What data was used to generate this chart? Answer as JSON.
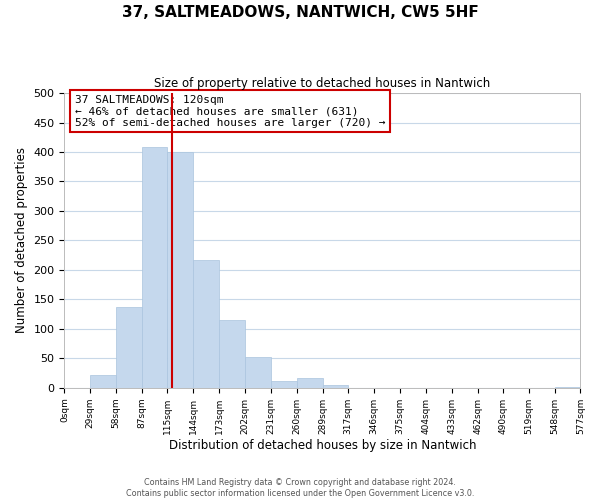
{
  "title": "37, SALTMEADOWS, NANTWICH, CW5 5HF",
  "subtitle": "Size of property relative to detached houses in Nantwich",
  "xlabel": "Distribution of detached houses by size in Nantwich",
  "ylabel": "Number of detached properties",
  "bar_edges": [
    0,
    29,
    58,
    87,
    115,
    144,
    173,
    202,
    231,
    260,
    289,
    317,
    346,
    375,
    404,
    433,
    462,
    490,
    519,
    548,
    577
  ],
  "bar_heights": [
    0,
    22,
    137,
    408,
    400,
    216,
    115,
    52,
    12,
    16,
    5,
    0,
    0,
    0,
    0,
    0,
    0,
    0,
    0,
    2
  ],
  "bar_color": "#c5d8ed",
  "bar_edgecolor": "#aac4de",
  "marker_line_x": 120,
  "marker_line_color": "#cc0000",
  "annotation_line1": "37 SALTMEADOWS: 120sqm",
  "annotation_line2": "← 46% of detached houses are smaller (631)",
  "annotation_line3": "52% of semi-detached houses are larger (720) →",
  "annotation_box_edgecolor": "#cc0000",
  "xlim": [
    0,
    577
  ],
  "ylim": [
    0,
    500
  ],
  "yticks": [
    0,
    50,
    100,
    150,
    200,
    250,
    300,
    350,
    400,
    450,
    500
  ],
  "xtick_labels": [
    "0sqm",
    "29sqm",
    "58sqm",
    "87sqm",
    "115sqm",
    "144sqm",
    "173sqm",
    "202sqm",
    "231sqm",
    "260sqm",
    "289sqm",
    "317sqm",
    "346sqm",
    "375sqm",
    "404sqm",
    "433sqm",
    "462sqm",
    "490sqm",
    "519sqm",
    "548sqm",
    "577sqm"
  ],
  "footer_line1": "Contains HM Land Registry data © Crown copyright and database right 2024.",
  "footer_line2": "Contains public sector information licensed under the Open Government Licence v3.0.",
  "bg_color": "#ffffff",
  "grid_color": "#c8d8e8",
  "title_fontsize": 11,
  "subtitle_fontsize": 8.5,
  "xlabel_fontsize": 8.5,
  "ylabel_fontsize": 8.5,
  "ytick_fontsize": 8,
  "xtick_fontsize": 6.5,
  "annotation_fontsize": 8,
  "footer_fontsize": 5.8
}
